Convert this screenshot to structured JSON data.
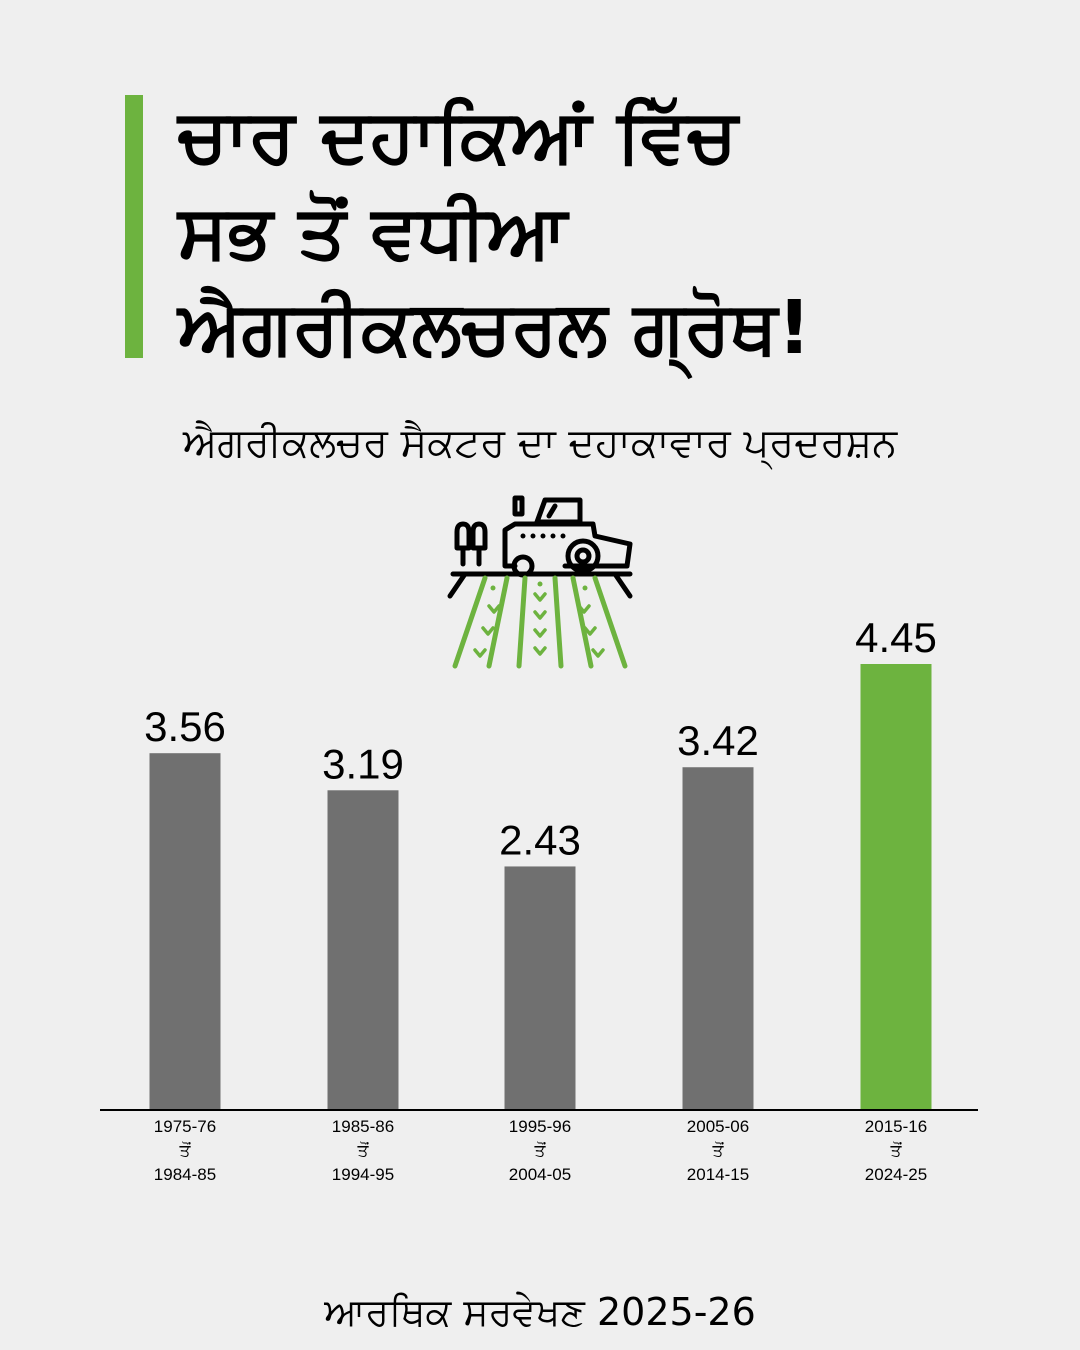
{
  "header": {
    "title_lines": [
      "ਚਾਰ ਦਹਾਕਿਆਂ ਵਿੱਚ",
      "ਸਭ ਤੋਂ ਵਧੀਆ",
      "ਐਗਰੀਕਲਚਰਲ ਗ੍ਰੋਥ!"
    ],
    "subtitle": "ਐਗਰੀਕਲਚਰ ਸੈਕਟਰ ਦਾ ਦਹਾਕਾਵਾਰ ਪ੍ਰਦਰਸ਼ਨ"
  },
  "icon": "tractor-field-icon",
  "colors": {
    "accent": "#6db33f",
    "bar": "#707070",
    "highlight": "#6db33f",
    "background": "#efefef"
  },
  "chart_data": {
    "type": "bar",
    "categories": [
      [
        "1975-76",
        "ਤੋਂ",
        "1984-85"
      ],
      [
        "1985-86",
        "ਤੋਂ",
        "1994-95"
      ],
      [
        "1995-96",
        "ਤੋਂ",
        "2004-05"
      ],
      [
        "2005-06",
        "ਤੋਂ",
        "2014-15"
      ],
      [
        "2015-16",
        "ਤੋਂ",
        "2024-25"
      ]
    ],
    "values": [
      3.56,
      3.19,
      2.43,
      3.42,
      4.45
    ],
    "highlight_index": 4,
    "ylim": [
      0,
      4.45
    ],
    "grid": false,
    "data_labels": true
  },
  "footer": {
    "source": "ਆਰਥਿਕ ਸਰਵੇਖਣ 2025-26"
  }
}
